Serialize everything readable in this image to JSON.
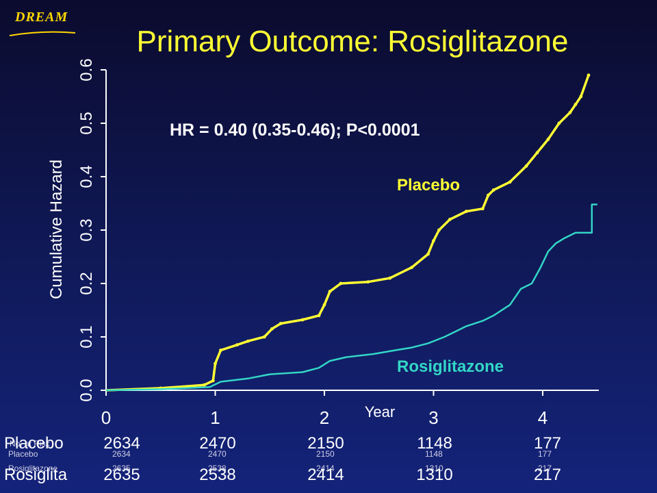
{
  "logo": {
    "text": "DREAM"
  },
  "title": "Primary Outcome: Rosiglitazone",
  "colors": {
    "placebo": "#ffff33",
    "rosiglitazone": "#33d6c6",
    "title": "#ffff33",
    "background": "#0b0b2e"
  },
  "chart_data": {
    "type": "line",
    "title": "Primary Outcome: Rosiglitazone",
    "xlabel": "Year",
    "ylabel": "Cumulative Hazard",
    "xlim": [
      0,
      4.5
    ],
    "ylim": [
      0,
      0.6
    ],
    "x_ticks": [
      "0",
      "1",
      "2",
      "3",
      "4"
    ],
    "y_ticks": [
      "0.0",
      "0.1",
      "0.2",
      "0.3",
      "0.4",
      "0.5",
      "0.6"
    ],
    "annotation": "HR = 0.40 (0.35-0.46); P<0.0001",
    "grid": false,
    "series": [
      {
        "name": "Placebo",
        "x": [
          0,
          0.5,
          0.9,
          0.98,
          1.0,
          1.05,
          1.2,
          1.3,
          1.45,
          1.52,
          1.6,
          1.8,
          1.95,
          2.0,
          2.05,
          2.15,
          2.4,
          2.6,
          2.8,
          2.95,
          3.0,
          3.05,
          3.15,
          3.3,
          3.45,
          3.5,
          3.55,
          3.7,
          3.85,
          3.95,
          4.05,
          4.15,
          4.25,
          4.3,
          4.35,
          4.42
        ],
        "y": [
          0,
          0.004,
          0.01,
          0.018,
          0.05,
          0.075,
          0.085,
          0.092,
          0.1,
          0.115,
          0.125,
          0.132,
          0.14,
          0.16,
          0.185,
          0.2,
          0.203,
          0.21,
          0.23,
          0.255,
          0.28,
          0.3,
          0.32,
          0.335,
          0.34,
          0.365,
          0.375,
          0.39,
          0.42,
          0.445,
          0.47,
          0.5,
          0.52,
          0.535,
          0.55,
          0.59
        ]
      },
      {
        "name": "Rosiglitazone",
        "x": [
          0,
          0.5,
          0.95,
          1.05,
          1.3,
          1.5,
          1.8,
          1.95,
          2.05,
          2.2,
          2.45,
          2.65,
          2.8,
          2.95,
          3.1,
          3.2,
          3.3,
          3.45,
          3.55,
          3.7,
          3.8,
          3.9,
          3.98,
          4.05,
          4.12,
          4.2,
          4.3,
          4.45,
          4.45,
          4.5
        ],
        "y": [
          0,
          0.002,
          0.006,
          0.016,
          0.022,
          0.03,
          0.034,
          0.042,
          0.055,
          0.062,
          0.068,
          0.075,
          0.08,
          0.088,
          0.1,
          0.11,
          0.12,
          0.13,
          0.14,
          0.16,
          0.19,
          0.2,
          0.23,
          0.26,
          0.275,
          0.285,
          0.295,
          0.295,
          0.348,
          0.348
        ]
      }
    ]
  },
  "series_labels": {
    "placebo": "Placebo",
    "rosiglitazone": "Rosiglitazone"
  },
  "risk_table": {
    "header": "No. at Risk",
    "rows": [
      {
        "label": "Placebo",
        "values": [
          "2634",
          "2470",
          "2150",
          "1148",
          "177"
        ]
      },
      {
        "label": "Rosiglita",
        "small_label": "Rosiglitazone",
        "values": [
          "2635",
          "2538",
          "2414",
          "1310",
          "217"
        ]
      }
    ]
  }
}
